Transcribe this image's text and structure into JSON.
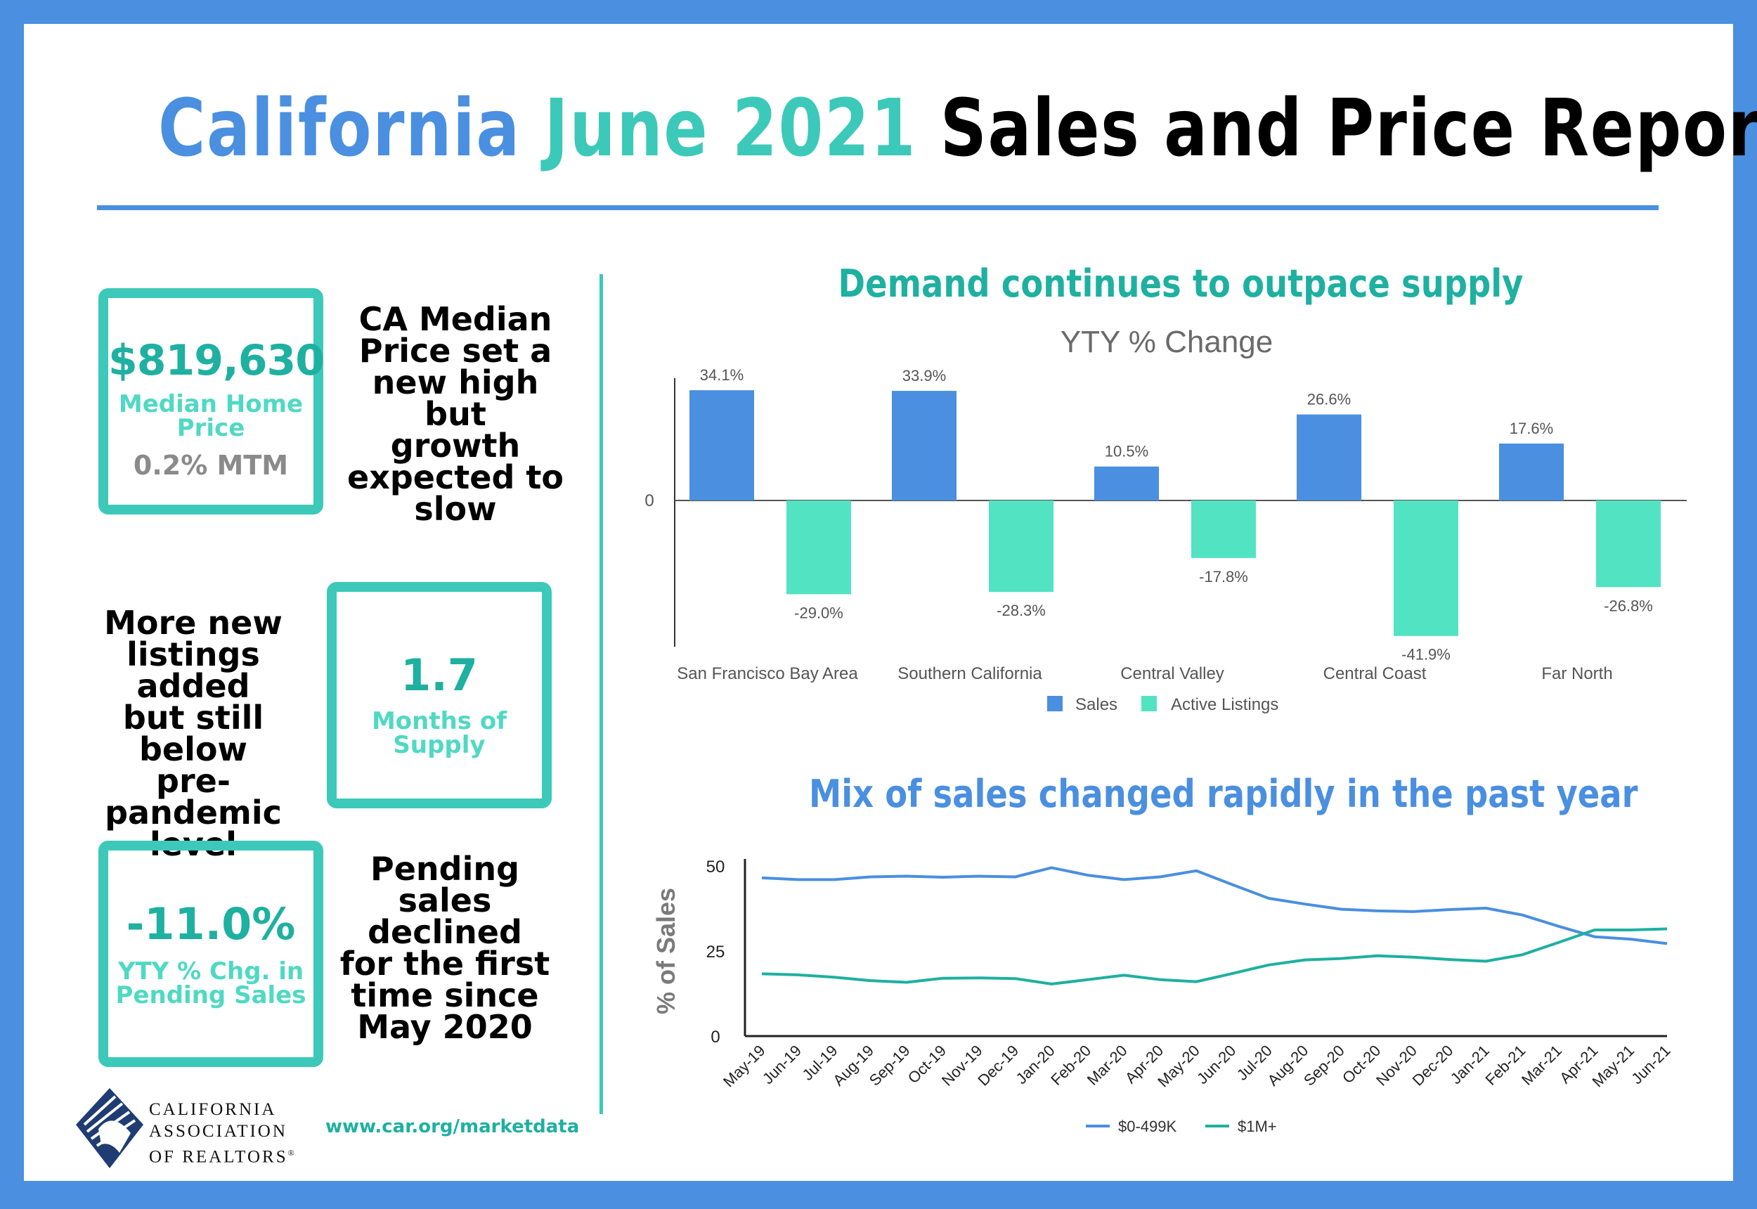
{
  "header": {
    "title_part1": "California",
    "title_part2": "June 2021",
    "title_part3": "Sales and Price Report"
  },
  "stats": {
    "median_price": {
      "value": "$819,630",
      "label_line1": "Median Home",
      "label_line2": "Price",
      "sub": "0.2% MTM"
    },
    "median_note": [
      "CA Median",
      "Price set a",
      "new high but",
      "growth",
      "expected to",
      "slow"
    ],
    "supply": {
      "value": "1.7",
      "label_line1": "Months of",
      "label_line2": "Supply"
    },
    "supply_note": [
      "More new",
      "listings added",
      "but still below",
      "pre-pandemic",
      "level"
    ],
    "pending": {
      "value": "-11.0%",
      "label_line1": "YTY % Chg. in",
      "label_line2": "Pending Sales"
    },
    "pending_note": [
      "Pending",
      "sales",
      "declined",
      "for the first",
      "time since",
      "May 2020"
    ]
  },
  "footer": {
    "org_line1": "CALIFORNIA",
    "org_line2": "ASSOCIATION",
    "org_line3": "OF REALTORS",
    "org_mark": "®",
    "website": "www.car.org/marketdata"
  },
  "colors": {
    "blue": "#4a8fe0",
    "teal": "#3cc9b9",
    "bar_teal": "#52e3c2",
    "line_blue": "#4a8fe0",
    "line_teal": "#1eb0a0"
  },
  "chart_data": [
    {
      "type": "bar",
      "title": "Demand continues to outpace supply",
      "subtitle": "YTY % Change",
      "categories": [
        "San Francisco Bay Area",
        "Southern California",
        "Central Valley",
        "Central Coast",
        "Far North"
      ],
      "series": [
        {
          "name": "Sales",
          "values": [
            34.1,
            33.9,
            10.5,
            26.6,
            17.6
          ],
          "labels": [
            "34.1%",
            "33.9%",
            "10.5%",
            "26.6%",
            "17.6%"
          ]
        },
        {
          "name": "Active Listings",
          "values": [
            -29.0,
            -28.3,
            -17.8,
            -41.9,
            -26.8
          ],
          "labels": [
            "-29.0%",
            "-28.3%",
            "-17.8%",
            "-41.9%",
            "-26.8%"
          ]
        }
      ],
      "ytick": "0",
      "ylim": [
        -45,
        38
      ],
      "legend": "bottom"
    },
    {
      "type": "line",
      "title": "Mix of sales changed rapidly in the past year",
      "ylabel": "% of Sales",
      "x": [
        "May-19",
        "Jun-19",
        "Jul-19",
        "Aug-19",
        "Sep-19",
        "Oct-19",
        "Nov-19",
        "Dec-19",
        "Jan-20",
        "Feb-20",
        "Mar-20",
        "Apr-20",
        "May-20",
        "Jun-20",
        "Jul-20",
        "Aug-20",
        "Sep-20",
        "Oct-20",
        "Nov-20",
        "Dec-20",
        "Jan-21",
        "Feb-21",
        "Mar-21",
        "Apr-21",
        "May-21",
        "Jun-21"
      ],
      "series": [
        {
          "name": "$0-499K",
          "values": [
            46.5,
            46,
            46,
            46.8,
            47,
            46.7,
            47,
            46.8,
            49.5,
            47.3,
            46,
            46.8,
            48.6,
            44.5,
            40.5,
            38.8,
            37.3,
            36.8,
            36.6,
            37.2,
            37.6,
            35.6,
            32.3,
            29.2,
            28.5,
            27.2
          ]
        },
        {
          "name": "$1M+",
          "values": [
            18.3,
            18,
            17.3,
            16.3,
            15.8,
            17,
            17.1,
            16.9,
            15.3,
            16.6,
            17.9,
            16.6,
            16,
            18.4,
            20.9,
            22.4,
            22.8,
            23.6,
            23.2,
            22.5,
            22,
            23.9,
            27.5,
            31.2,
            31.2,
            31.5
          ]
        }
      ],
      "yticks": [
        "0",
        "25",
        "50"
      ],
      "ylim": [
        0,
        50
      ],
      "legend": "bottom"
    }
  ]
}
